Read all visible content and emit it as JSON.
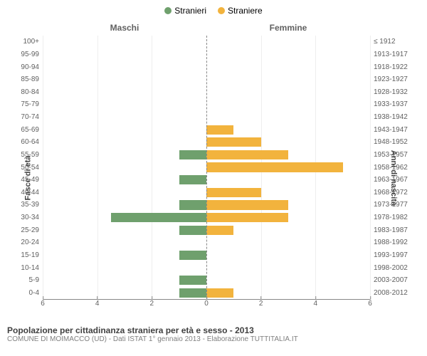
{
  "chart": {
    "type": "population-pyramid",
    "legend": {
      "male": {
        "label": "Stranieri",
        "color": "#6fa06d"
      },
      "female": {
        "label": "Straniere",
        "color": "#f2b33d"
      }
    },
    "headers": {
      "left": "Maschi",
      "right": "Femmine"
    },
    "y_left_label": "Fasce di età",
    "y_right_label": "Anni di nascita",
    "x_max": 6,
    "x_ticks": [
      6,
      4,
      2,
      0,
      2,
      4,
      6
    ],
    "background_color": "#ffffff",
    "grid_color": "#eeeeee",
    "bar_height_ratio": 0.75,
    "rows": [
      {
        "age": "100+",
        "birth": "≤ 1912",
        "m": 0,
        "f": 0
      },
      {
        "age": "95-99",
        "birth": "1913-1917",
        "m": 0,
        "f": 0
      },
      {
        "age": "90-94",
        "birth": "1918-1922",
        "m": 0,
        "f": 0
      },
      {
        "age": "85-89",
        "birth": "1923-1927",
        "m": 0,
        "f": 0
      },
      {
        "age": "80-84",
        "birth": "1928-1932",
        "m": 0,
        "f": 0
      },
      {
        "age": "75-79",
        "birth": "1933-1937",
        "m": 0,
        "f": 0
      },
      {
        "age": "70-74",
        "birth": "1938-1942",
        "m": 0,
        "f": 0
      },
      {
        "age": "65-69",
        "birth": "1943-1947",
        "m": 0,
        "f": 1
      },
      {
        "age": "60-64",
        "birth": "1948-1952",
        "m": 0,
        "f": 2
      },
      {
        "age": "55-59",
        "birth": "1953-1957",
        "m": 1,
        "f": 3
      },
      {
        "age": "50-54",
        "birth": "1958-1962",
        "m": 0,
        "f": 5
      },
      {
        "age": "45-49",
        "birth": "1963-1967",
        "m": 1,
        "f": 0
      },
      {
        "age": "40-44",
        "birth": "1968-1972",
        "m": 0,
        "f": 2
      },
      {
        "age": "35-39",
        "birth": "1973-1977",
        "m": 1,
        "f": 3
      },
      {
        "age": "30-34",
        "birth": "1978-1982",
        "m": 3.5,
        "f": 3
      },
      {
        "age": "25-29",
        "birth": "1983-1987",
        "m": 1,
        "f": 1
      },
      {
        "age": "20-24",
        "birth": "1988-1992",
        "m": 0,
        "f": 0
      },
      {
        "age": "15-19",
        "birth": "1993-1997",
        "m": 1,
        "f": 0
      },
      {
        "age": "10-14",
        "birth": "1998-2002",
        "m": 0,
        "f": 0
      },
      {
        "age": "5-9",
        "birth": "2003-2007",
        "m": 1,
        "f": 0
      },
      {
        "age": "0-4",
        "birth": "2008-2012",
        "m": 1,
        "f": 1
      }
    ]
  },
  "caption": {
    "title": "Popolazione per cittadinanza straniera per età e sesso - 2013",
    "subtitle": "COMUNE DI MOIMACCO (UD) - Dati ISTAT 1° gennaio 2013 - Elaborazione TUTTITALIA.IT"
  }
}
